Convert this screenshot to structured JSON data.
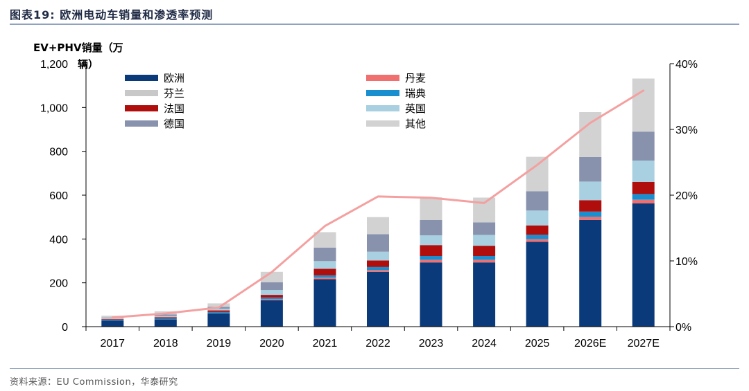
{
  "header": {
    "title": "图表19:  欧洲电动车销量和渗透率预测"
  },
  "footer": {
    "source": "资料来源：EU Commission，华泰研究"
  },
  "colors": {
    "欧洲": "#0b3a7a",
    "丹麦": "#f07070",
    "芬兰": "#c8c8c8",
    "瑞典": "#1a8fd0",
    "法国": "#b00d0d",
    "英国": "#a8d0e0",
    "德国": "#8892ad",
    "其他": "#d2d2d2",
    "penetration_line": "#f4a0a0",
    "axis": "#000000"
  },
  "chart_data": {
    "type": "bar",
    "stacked": true,
    "ylabel": "EV+PHV销量（万辆）",
    "ylim": [
      0,
      1200
    ],
    "y_ticks": [
      "0",
      "200",
      "400",
      "600",
      "800",
      "1,000",
      "1,200"
    ],
    "y2lim": [
      0,
      0.4
    ],
    "y2_ticks": [
      "0%",
      "10%",
      "20%",
      "30%",
      "40%"
    ],
    "categories": [
      "2017",
      "2018",
      "2019",
      "2020",
      "2021",
      "2022",
      "2023",
      "2024",
      "2025",
      "2026E",
      "2027E"
    ],
    "legend": {
      "left": [
        "欧洲",
        "芬兰",
        "法国",
        "德国"
      ],
      "right": [
        "丹麦",
        "瑞典",
        "英国",
        "其他"
      ]
    },
    "series": [
      {
        "name": "欧洲",
        "values": [
          28,
          33,
          60,
          120,
          217,
          250,
          293,
          293,
          387,
          487,
          563
        ]
      },
      {
        "name": "丹麦",
        "values": [
          1,
          1,
          2,
          5,
          7,
          8,
          12,
          12,
          12,
          14,
          16
        ]
      },
      {
        "name": "瑞典",
        "values": [
          3,
          4,
          5,
          8,
          10,
          14,
          17,
          17,
          20,
          24,
          26
        ]
      },
      {
        "name": "法国",
        "values": [
          3,
          5,
          7,
          12,
          30,
          30,
          50,
          47,
          43,
          52,
          55
        ]
      },
      {
        "name": "英国",
        "values": [
          4,
          6,
          8,
          22,
          35,
          40,
          45,
          50,
          68,
          85,
          98
        ]
      },
      {
        "name": "德国",
        "values": [
          3,
          7,
          8,
          35,
          62,
          80,
          70,
          57,
          88,
          112,
          132
        ]
      },
      {
        "name": "其他",
        "values": [
          8,
          14,
          16,
          48,
          70,
          78,
          103,
          113,
          157,
          205,
          242
        ]
      }
    ],
    "penetration": [
      0.014,
      0.02,
      0.029,
      0.083,
      0.153,
      0.198,
      0.196,
      0.188,
      0.246,
      0.31,
      0.359
    ]
  }
}
